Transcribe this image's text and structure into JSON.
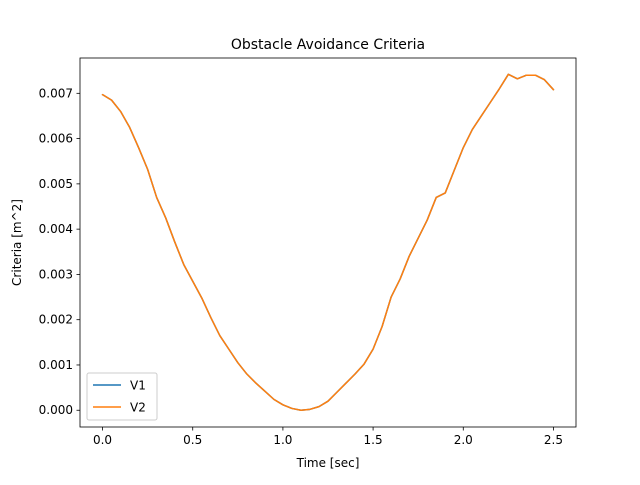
{
  "chart_data": {
    "type": "line",
    "title": "Obstacle Avoidance Criteria",
    "xlabel": "Time [sec]",
    "ylabel": "Criteria [m^2]",
    "xlim": [
      -0.125,
      2.625
    ],
    "ylim": [
      -0.00037,
      0.00778
    ],
    "xticks": [
      0.0,
      0.5,
      1.0,
      1.5,
      2.0,
      2.5
    ],
    "xtick_labels": [
      "0.0",
      "0.5",
      "1.0",
      "1.5",
      "2.0",
      "2.5"
    ],
    "yticks": [
      0.0,
      0.001,
      0.002,
      0.003,
      0.004,
      0.005,
      0.006,
      0.007
    ],
    "ytick_labels": [
      "0.000",
      "0.001",
      "0.002",
      "0.003",
      "0.004",
      "0.005",
      "0.006",
      "0.007"
    ],
    "grid": false,
    "legend": {
      "placement": "lower-left"
    },
    "x": [
      0.0,
      0.05,
      0.1,
      0.15,
      0.2,
      0.25,
      0.3,
      0.35,
      0.4,
      0.45,
      0.5,
      0.55,
      0.6,
      0.65,
      0.7,
      0.75,
      0.8,
      0.85,
      0.9,
      0.95,
      1.0,
      1.05,
      1.1,
      1.15,
      1.2,
      1.25,
      1.3,
      1.35,
      1.4,
      1.45,
      1.5,
      1.55,
      1.6,
      1.65,
      1.7,
      1.75,
      1.8,
      1.85,
      1.9,
      1.95,
      2.0,
      2.05,
      2.1,
      2.15,
      2.2,
      2.25,
      2.3,
      2.35,
      2.4,
      2.45,
      2.5
    ],
    "series": [
      {
        "name": "V1",
        "color": "#1f77b4",
        "values": [
          0.00697,
          0.00685,
          0.0066,
          0.00625,
          0.0058,
          0.00532,
          0.0047,
          0.00425,
          0.00372,
          0.00322,
          0.00285,
          0.00248,
          0.00205,
          0.00165,
          0.00135,
          0.00105,
          0.0008,
          0.0006,
          0.00042,
          0.00024,
          0.00012,
          4e-05,
          0.0,
          2e-05,
          8e-05,
          0.0002,
          0.0004,
          0.0006,
          0.0008,
          0.00102,
          0.00135,
          0.00185,
          0.0025,
          0.0029,
          0.0034,
          0.0038,
          0.0042,
          0.0047,
          0.0048,
          0.0053,
          0.0058,
          0.0062,
          0.0065,
          0.0068,
          0.0071,
          0.00742,
          0.00732,
          0.0074,
          0.0074,
          0.0073,
          0.00708
        ]
      },
      {
        "name": "V2",
        "color": "#ff7f0e",
        "values": [
          0.00697,
          0.00685,
          0.0066,
          0.00625,
          0.0058,
          0.00532,
          0.0047,
          0.00425,
          0.00372,
          0.00322,
          0.00285,
          0.00248,
          0.00205,
          0.00165,
          0.00135,
          0.00105,
          0.0008,
          0.0006,
          0.00042,
          0.00024,
          0.00012,
          4e-05,
          0.0,
          2e-05,
          8e-05,
          0.0002,
          0.0004,
          0.0006,
          0.0008,
          0.00102,
          0.00135,
          0.00185,
          0.0025,
          0.0029,
          0.0034,
          0.0038,
          0.0042,
          0.0047,
          0.0048,
          0.0053,
          0.0058,
          0.0062,
          0.0065,
          0.0068,
          0.0071,
          0.00742,
          0.00732,
          0.0074,
          0.0074,
          0.0073,
          0.00708
        ]
      }
    ]
  }
}
